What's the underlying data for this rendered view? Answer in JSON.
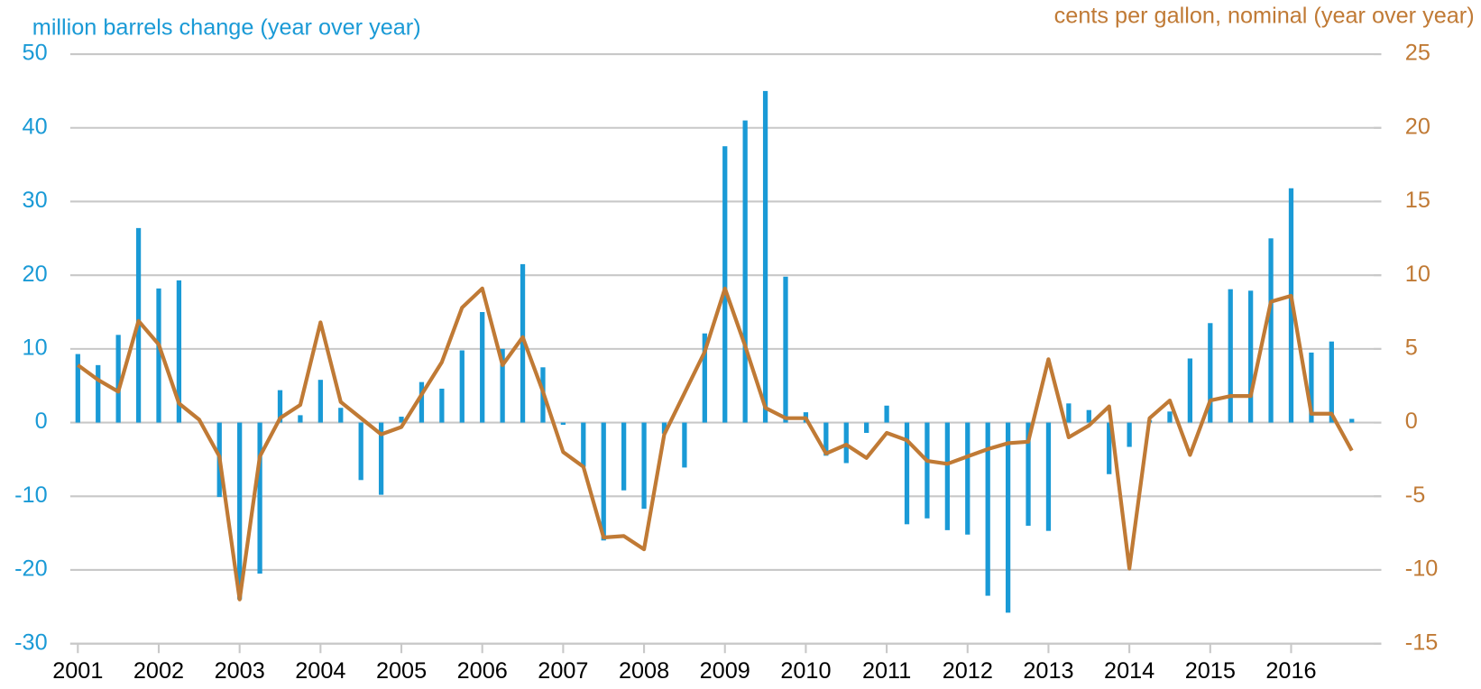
{
  "chart_data": {
    "type": "bar-line",
    "y_label": "million barrels change (year over year)",
    "y2_label": "cents per gallon, nominal (year over year)",
    "categories": [
      "2001",
      null,
      null,
      null,
      "2002",
      null,
      null,
      null,
      "2003",
      null,
      null,
      null,
      "2004",
      null,
      null,
      null,
      "2005",
      null,
      null,
      null,
      "2006",
      null,
      null,
      null,
      "2007",
      null,
      null,
      null,
      "2008",
      null,
      null,
      null,
      "2009",
      null,
      null,
      null,
      "2010",
      null,
      null,
      null,
      "2011",
      null,
      null,
      null,
      "2012",
      null,
      null,
      null,
      "2013",
      null,
      null,
      null,
      "2014",
      null,
      null,
      null,
      "2015",
      null,
      null,
      null,
      "2016",
      null,
      null,
      null
    ],
    "series": [
      {
        "type": "bar",
        "color": "#1a9ad6",
        "values": [
          9.3,
          7.8,
          11.9,
          26.4,
          18.2,
          19.3,
          0,
          -10.1,
          -24,
          -20.5,
          4.4,
          1,
          5.8,
          2,
          -7.8,
          -9.8,
          0.8,
          5.5,
          4.6,
          9.8,
          15,
          10,
          21.5,
          7.5,
          -0.3,
          -6,
          -16,
          -9.2,
          -11.7,
          -1.5,
          -6.1,
          12.1,
          37.5,
          41,
          45,
          19.8,
          1.4,
          -4.5,
          -5.5,
          -1.4,
          2.3,
          -13.8,
          -13,
          -14.6,
          -15.2,
          -23.5,
          -25.8,
          -14,
          -14.7,
          2.6,
          1.7,
          -7,
          -3.3,
          0.3,
          1.5,
          8.7,
          13.5,
          18.1,
          17.9,
          25,
          31.8,
          9.5,
          11,
          0.5
        ]
      },
      {
        "type": "line",
        "axis": "y2",
        "color": "#c07a35",
        "values": [
          3.9,
          2.9,
          2.1,
          6.9,
          5.3,
          1.3,
          0.2,
          -2.3,
          -12,
          -2.3,
          0.3,
          1.2,
          6.8,
          1.4,
          0.3,
          -0.8,
          -0.3,
          1.9,
          4.1,
          7.8,
          9.1,
          3.9,
          5.8,
          2.1,
          -2,
          -3,
          -7.8,
          -7.7,
          -8.6,
          -0.8,
          2,
          4.8,
          9.1,
          5.2,
          1,
          0.3,
          0.3,
          -2.1,
          -1.5,
          -2.4,
          -0.7,
          -1.2,
          -2.6,
          -2.8,
          -2.3,
          -1.8,
          -1.4,
          -1.3,
          4.3,
          -1,
          -0.2,
          1.1,
          -9.9,
          0.3,
          1.5,
          -2.2,
          1.5,
          1.8,
          1.8,
          8.2,
          8.6,
          0.6,
          0.6,
          -1.9
        ]
      }
    ],
    "ylim": [
      -30,
      50
    ],
    "yticks": [
      -30,
      -20,
      -10,
      0,
      10,
      20,
      30,
      40,
      50
    ],
    "y2lim": [
      -15,
      25
    ],
    "y2ticks": [
      -15,
      -10,
      -5,
      0,
      5,
      10,
      15,
      20,
      25
    ],
    "grid": true
  }
}
